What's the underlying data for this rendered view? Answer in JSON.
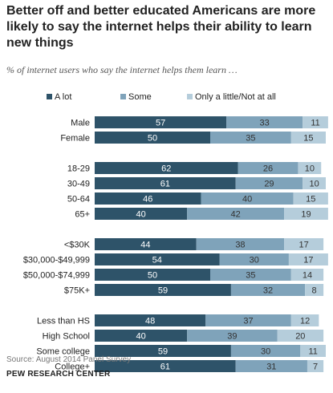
{
  "title": "Better off and better educated Americans are more likely to say the internet helps their ability to learn new things",
  "subtitle": "% of internet users who say the internet helps them learn …",
  "source": "Source: August 2014 Panel Survey",
  "organization": "PEW RESEARCH CENTER",
  "colors": {
    "a_lot": "#2e5369",
    "some": "#7fa3ba",
    "little": "#b5cddb",
    "label_light": "#ffffff",
    "label_dark": "#333333"
  },
  "chart_data": {
    "type": "bar",
    "orientation": "horizontal",
    "stacked": true,
    "xlim": [
      0,
      100
    ],
    "legend_position": "top",
    "groups": [
      {
        "categories": [
          "Male",
          "Female"
        ]
      },
      {
        "categories": [
          "18-29",
          "30-49",
          "50-64",
          "65+"
        ]
      },
      {
        "categories": [
          "<$30K",
          "$30,000-$49,999",
          "$50,000-$74,999",
          "$75K+"
        ]
      },
      {
        "categories": [
          "Less than HS",
          "High School",
          "Some college",
          "College+"
        ]
      }
    ],
    "categories": [
      "Male",
      "Female",
      "18-29",
      "30-49",
      "50-64",
      "65+",
      "<$30K",
      "$30,000-$49,999",
      "$50,000-$74,999",
      "$75K+",
      "Less than HS",
      "High School",
      "Some college",
      "College+"
    ],
    "series": [
      {
        "name": "A lot",
        "values": [
          57,
          50,
          62,
          61,
          46,
          40,
          44,
          54,
          50,
          59,
          48,
          40,
          59,
          61
        ]
      },
      {
        "name": "Some",
        "values": [
          33,
          35,
          26,
          29,
          40,
          42,
          38,
          30,
          35,
          32,
          37,
          39,
          30,
          31
        ]
      },
      {
        "name": "Only a little/Not at all",
        "values": [
          11,
          15,
          10,
          10,
          15,
          19,
          17,
          17,
          14,
          8,
          12,
          20,
          11,
          7
        ]
      }
    ]
  }
}
